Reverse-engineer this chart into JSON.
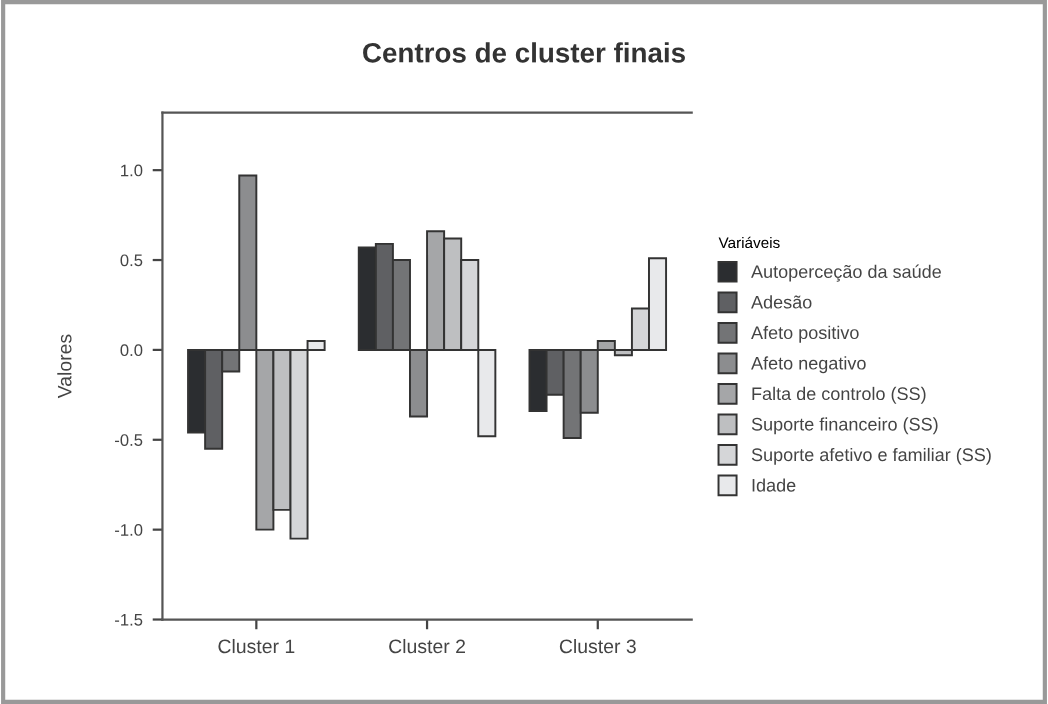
{
  "chart_data": {
    "type": "bar",
    "title": "Centros de cluster finais",
    "ylabel": "Valores",
    "legend_title": "Variáveis",
    "categories": [
      "Cluster 1",
      "Cluster 2",
      "Cluster 3"
    ],
    "series": [
      {
        "name": "Autoperceção da saúde",
        "color": "#2b2d30",
        "values": [
          -0.46,
          0.57,
          -0.34
        ]
      },
      {
        "name": "Adesão",
        "color": "#5f6063",
        "values": [
          -0.55,
          0.59,
          -0.25
        ]
      },
      {
        "name": "Afeto positivo",
        "color": "#737476",
        "values": [
          -0.12,
          0.5,
          -0.49
        ]
      },
      {
        "name": "Afeto negativo",
        "color": "#8c8d8f",
        "values": [
          0.97,
          -0.37,
          -0.35
        ]
      },
      {
        "name": "Falta de controlo (SS)",
        "color": "#a5a6a8",
        "values": [
          -1.0,
          0.66,
          0.05
        ]
      },
      {
        "name": "Suporte financeiro (SS)",
        "color": "#bebfc1",
        "values": [
          -0.89,
          0.62,
          -0.03
        ]
      },
      {
        "name": "Suporte afetivo e familiar (SS)",
        "color": "#d5d6d8",
        "values": [
          -1.05,
          0.5,
          0.23
        ]
      },
      {
        "name": "Idade",
        "color": "#e8e9eb",
        "values": [
          0.05,
          -0.48,
          0.51
        ]
      }
    ],
    "ylim": [
      -1.5,
      1.32
    ],
    "yticks": [
      {
        "value": -1.5,
        "label": "-1.5"
      },
      {
        "value": -1.0,
        "label": "-1.0"
      },
      {
        "value": -0.5,
        "label": "-0.5"
      },
      {
        "value": 0.0,
        "label": "0.0"
      },
      {
        "value": 0.5,
        "label": "0.5"
      },
      {
        "value": 1.0,
        "label": "1.0"
      }
    ],
    "grid": false,
    "legend": "right"
  }
}
